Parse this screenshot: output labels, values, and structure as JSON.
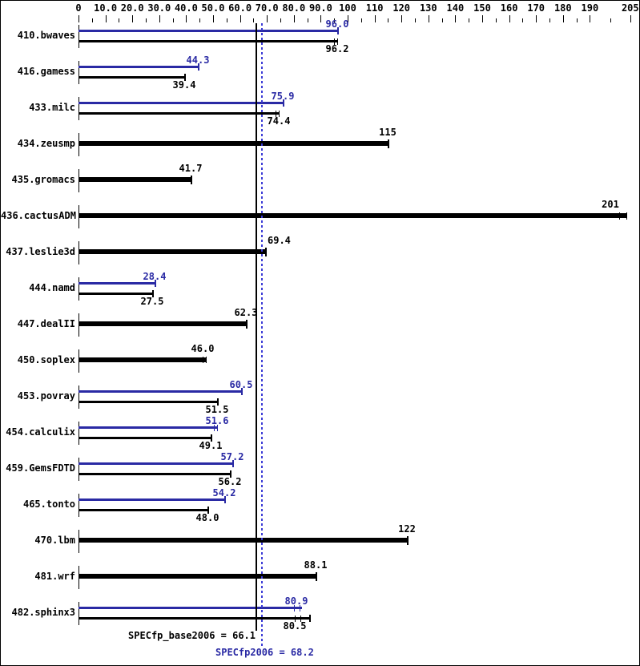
{
  "chart_data": {
    "type": "bar",
    "orientation": "horizontal",
    "axis": {
      "min": 0,
      "max": 205,
      "major_ticks": [
        0,
        10,
        20,
        30,
        40,
        50,
        60,
        70,
        80,
        90,
        100,
        110,
        120,
        130,
        140,
        150,
        160,
        170,
        180,
        190,
        205
      ],
      "major_tick_labels": [
        "0",
        "10.0",
        "20.0",
        "30.0",
        "40.0",
        "50.0",
        "60.0",
        "70.0",
        "80.0",
        "90.0",
        "100",
        "110",
        "120",
        "130",
        "140",
        "150",
        "160",
        "170",
        "180",
        "190",
        "205"
      ],
      "minor_ticks": "midpoints between major ticks"
    },
    "reference_lines": [
      {
        "name": "base_mean",
        "value": 66.1,
        "style": "solid",
        "color": "#000000",
        "label": "SPECfp_base2006 = 66.1"
      },
      {
        "name": "peak_mean",
        "value": 68.2,
        "style": "dotted",
        "color": "#3b3bd6",
        "label": "SPECfp2006 = 68.2"
      }
    ],
    "benchmarks": [
      {
        "name": "410.bwaves",
        "peak": {
          "label": "96.0",
          "value": 96.0,
          "marker": "cap"
        },
        "base": {
          "label": "96.2",
          "value": 96.2,
          "marker": "dbl"
        }
      },
      {
        "name": "416.gamess",
        "peak": {
          "label": "44.3",
          "value": 44.3,
          "marker": "cap"
        },
        "base": {
          "label": "39.4",
          "value": 39.4,
          "marker": "cap"
        }
      },
      {
        "name": "433.milc",
        "peak": {
          "label": "75.9",
          "value": 75.9,
          "marker": "cap"
        },
        "base": {
          "label": "74.4",
          "value": 74.4,
          "marker": "dbl"
        }
      },
      {
        "name": "434.zeusmp",
        "base_only": {
          "label": "115",
          "value": 115,
          "marker": "cap"
        }
      },
      {
        "name": "435.gromacs",
        "base_only": {
          "label": "41.7",
          "value": 41.7,
          "marker": "cap"
        }
      },
      {
        "name": "436.cactusADM",
        "base_only": {
          "label": "201",
          "value": 201,
          "marker": "dbl_fwd2"
        }
      },
      {
        "name": "437.leslie3d",
        "base_only": {
          "label": "69.4",
          "value": 69.4,
          "marker": "cap",
          "label_align": "left"
        }
      },
      {
        "name": "444.namd",
        "peak": {
          "label": "28.4",
          "value": 28.4,
          "marker": "cap"
        },
        "base": {
          "label": "27.5",
          "value": 27.5,
          "marker": "cap"
        }
      },
      {
        "name": "447.dealII",
        "base_only": {
          "label": "62.3",
          "value": 62.3,
          "marker": "cap"
        }
      },
      {
        "name": "450.soplex",
        "base_only": {
          "label": "46.0",
          "value": 46.0,
          "marker": "dbl_fwd"
        }
      },
      {
        "name": "453.povray",
        "peak": {
          "label": "60.5",
          "value": 60.5,
          "marker": "cap"
        },
        "base": {
          "label": "51.5",
          "value": 51.5,
          "marker": "cap"
        }
      },
      {
        "name": "454.calculix",
        "peak": {
          "label": "51.6",
          "value": 51.6,
          "marker": "dbl"
        },
        "base": {
          "label": "49.1",
          "value": 49.1,
          "marker": "cap"
        }
      },
      {
        "name": "459.GemsFDTD",
        "peak": {
          "label": "57.2",
          "value": 57.2,
          "marker": "cap"
        },
        "base": {
          "label": "56.2",
          "value": 56.2,
          "marker": "cap"
        }
      },
      {
        "name": "465.tonto",
        "peak": {
          "label": "54.2",
          "value": 54.2,
          "marker": "cap"
        },
        "base": {
          "label": "48.0",
          "value": 48.0,
          "marker": "cap"
        }
      },
      {
        "name": "470.lbm",
        "base_only": {
          "label": "122",
          "value": 122,
          "marker": "cap"
        }
      },
      {
        "name": "481.wrf",
        "base_only": {
          "label": "88.1",
          "value": 88.1,
          "marker": "cap"
        }
      },
      {
        "name": "482.sphinx3",
        "peak": {
          "label": "80.9",
          "value": 80.9,
          "marker": "runs"
        },
        "base": {
          "label": "80.5",
          "value": 80.5,
          "marker": "runs_cap"
        }
      }
    ]
  },
  "summary": {
    "base_label": "SPECfp_base2006 = 66.1",
    "peak_label": "SPECfp2006 = 68.2"
  },
  "colors": {
    "peak_blue": "#2a2aa4",
    "base_black": "#000000",
    "dotted_line_blue": "#3b3bd6",
    "background": "#ffffff",
    "border": "#000000"
  }
}
